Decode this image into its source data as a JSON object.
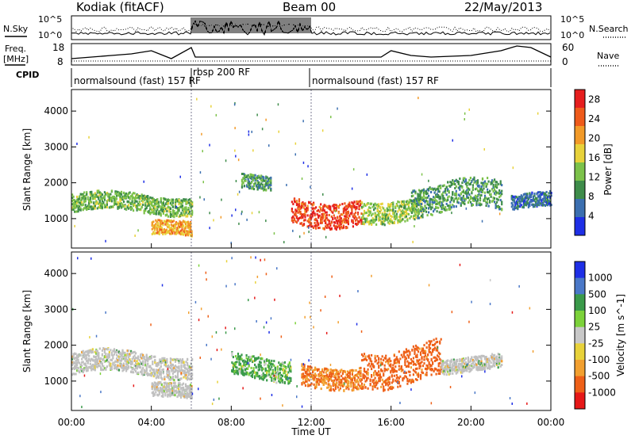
{
  "header": {
    "station_title": "Kodiak (fitACF)",
    "beam_title": "Beam 00",
    "date_title": "22/May/2013"
  },
  "noise_panel": {
    "left_label": "N.Sky",
    "right_label": "N.Search",
    "top_tick": "10^5",
    "bottom_tick": "10^0"
  },
  "freq_panel": {
    "left_label_line1": "Freq.",
    "left_label_line2": "[MHz]",
    "left_ticks": [
      "18",
      "8"
    ],
    "right_label": "Nave",
    "right_ticks": [
      "60",
      "0"
    ]
  },
  "cpid_panel": {
    "label": "CPID",
    "segments": [
      {
        "text": "normalsound (fast) 157 RF"
      },
      {
        "text": "rbsp 200 RF"
      },
      {
        "text": "normalsound (fast) 157 RF"
      }
    ]
  },
  "colors": {
    "power": [
      "#1e2fe6",
      "#3b6fb0",
      "#3e8c4a",
      "#7cc24a",
      "#e8d23a",
      "#f29a28",
      "#ee5a1a",
      "#e61e1e"
    ],
    "velocity": [
      "#1e2fe6",
      "#4a78c8",
      "#3a9a4a",
      "#7cd23a",
      "#c8c8c8",
      "#e8d23a",
      "#f2a030",
      "#ee6018",
      "#e61818"
    ],
    "ground_scatter": "#c0c0c0"
  },
  "chart_data": [
    {
      "type": "heatmap",
      "title": "Power",
      "xlabel": "",
      "ylabel": "Slant Range [km]",
      "xlim": [
        0,
        24
      ],
      "ylim": [
        180,
        4600
      ],
      "x_ticks": [
        "00:00",
        "04:00",
        "08:00",
        "12:00",
        "16:00",
        "20:00",
        "00:00"
      ],
      "y_ticks": [
        "1000",
        "2000",
        "3000",
        "4000"
      ],
      "colorbar": {
        "label": "Power [dB]",
        "ticks": [
          "4",
          "8",
          "12",
          "16",
          "20",
          "24",
          "28"
        ],
        "range": [
          0,
          30
        ]
      },
      "features": [
        {
          "t": [
            0.0,
            6.0
          ],
          "range_km": [
            1200,
            1700
          ],
          "power_db": 12
        },
        {
          "t": [
            4.0,
            6.0
          ],
          "range_km": [
            500,
            900
          ],
          "power_db": 20
        },
        {
          "t": [
            8.5,
            10.0
          ],
          "range_km": [
            1800,
            2200
          ],
          "power_db": 10
        },
        {
          "t": [
            11.0,
            14.5
          ],
          "range_km": [
            900,
            1600
          ],
          "power_db": 26
        },
        {
          "t": [
            14.5,
            17.5
          ],
          "range_km": [
            1000,
            1600
          ],
          "power_db": 14
        },
        {
          "t": [
            17.0,
            21.5
          ],
          "range_km": [
            1200,
            2000
          ],
          "power_db": 10
        },
        {
          "t": [
            22.0,
            24.0
          ],
          "range_km": [
            1300,
            1700
          ],
          "power_db": 6
        }
      ]
    },
    {
      "type": "heatmap",
      "title": "Velocity",
      "xlabel": "Time UT",
      "ylabel": "Slant Range [km]",
      "xlim": [
        0,
        24
      ],
      "ylim": [
        180,
        4600
      ],
      "x_ticks": [
        "00:00",
        "04:00",
        "08:00",
        "12:00",
        "16:00",
        "20:00",
        "00:00"
      ],
      "y_ticks": [
        "1000",
        "2000",
        "3000",
        "4000"
      ],
      "colorbar": {
        "label": "Velocity [m s^-1]",
        "ticks": [
          "1000",
          "500",
          "100",
          "25",
          "-25",
          "-100",
          "-500",
          "-1000"
        ],
        "range": [
          -1000,
          1000
        ]
      },
      "features": [
        {
          "t": [
            0.0,
            6.0
          ],
          "range_km": [
            1200,
            1800
          ],
          "velocity": 0
        },
        {
          "t": [
            4.0,
            6.0
          ],
          "range_km": [
            500,
            900
          ],
          "velocity": 0
        },
        {
          "t": [
            8.0,
            11.0
          ],
          "range_km": [
            1100,
            1700
          ],
          "velocity": 100
        },
        {
          "t": [
            11.5,
            14.5
          ],
          "range_km": [
            900,
            1500
          ],
          "velocity": -300
        },
        {
          "t": [
            14.5,
            18.5
          ],
          "range_km": [
            1000,
            2000
          ],
          "velocity": -400
        },
        {
          "t": [
            18.5,
            21.5
          ],
          "range_km": [
            1300,
            1700
          ],
          "velocity": 0
        }
      ]
    }
  ]
}
